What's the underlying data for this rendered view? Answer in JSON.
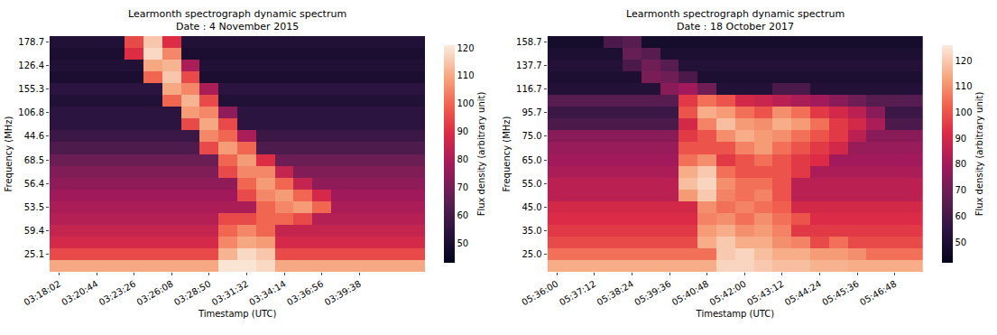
{
  "chart_data": [
    {
      "type": "heatmap",
      "title": "Learmonth spectrograph dynamic spectrum",
      "subtitle": "Date : 4 November 2015",
      "x_label": "Timestamp (UTC)",
      "y_label": "Frequency (MHz)",
      "colorbar_label": "Flux density (arbitrary unit)",
      "colorbar_range": [
        43,
        121
      ],
      "colorbar_ticks": [
        50,
        60,
        70,
        80,
        90,
        100,
        110,
        120
      ],
      "x": [
        "03:18:02",
        null,
        "03:20:44",
        null,
        "03:23:26",
        null,
        "03:26:08",
        null,
        "03:28:50",
        null,
        "03:31:32",
        null,
        "03:34:14",
        null,
        "03:36:56",
        null,
        "03:39:38",
        null,
        null,
        null
      ],
      "y": [
        "178.7",
        null,
        "126.4",
        null,
        "155.3",
        null,
        "106.8",
        null,
        "44.6",
        null,
        "68.5",
        null,
        "56.4",
        null,
        "53.5",
        null,
        "59.4",
        null,
        "25.1",
        null
      ],
      "z": [
        [
          52,
          52,
          52,
          52,
          95,
          115,
          90,
          52,
          52,
          52,
          52,
          52,
          52,
          52,
          52,
          52,
          52,
          52,
          52,
          52
        ],
        [
          50,
          50,
          50,
          50,
          90,
          118,
          105,
          50,
          50,
          50,
          50,
          50,
          50,
          50,
          50,
          50,
          50,
          50,
          50,
          50
        ],
        [
          52,
          52,
          52,
          52,
          52,
          110,
          112,
          80,
          52,
          52,
          52,
          52,
          52,
          52,
          52,
          52,
          52,
          52,
          52,
          52
        ],
        [
          50,
          50,
          50,
          50,
          50,
          100,
          115,
          95,
          50,
          50,
          50,
          50,
          50,
          50,
          50,
          50,
          50,
          50,
          50,
          50
        ],
        [
          55,
          55,
          55,
          55,
          55,
          55,
          110,
          105,
          80,
          55,
          55,
          55,
          55,
          55,
          55,
          55,
          55,
          55,
          55,
          55
        ],
        [
          52,
          52,
          52,
          52,
          52,
          52,
          100,
          112,
          95,
          52,
          52,
          52,
          52,
          52,
          52,
          52,
          52,
          52,
          52,
          52
        ],
        [
          55,
          55,
          55,
          55,
          55,
          55,
          55,
          108,
          105,
          75,
          55,
          55,
          55,
          55,
          55,
          55,
          55,
          55,
          55,
          55
        ],
        [
          55,
          55,
          55,
          55,
          55,
          55,
          55,
          95,
          110,
          95,
          55,
          55,
          55,
          55,
          55,
          55,
          55,
          55,
          55,
          55
        ],
        [
          58,
          58,
          58,
          58,
          58,
          58,
          58,
          58,
          105,
          100,
          80,
          58,
          58,
          58,
          58,
          58,
          58,
          58,
          58,
          58
        ],
        [
          62,
          62,
          62,
          62,
          62,
          62,
          62,
          62,
          95,
          108,
          100,
          62,
          62,
          62,
          62,
          62,
          62,
          62,
          62,
          62
        ],
        [
          68,
          68,
          68,
          68,
          68,
          68,
          68,
          68,
          68,
          100,
          108,
          90,
          68,
          68,
          68,
          68,
          68,
          68,
          68,
          68
        ],
        [
          72,
          72,
          72,
          72,
          72,
          72,
          72,
          72,
          72,
          95,
          105,
          105,
          85,
          72,
          72,
          72,
          72,
          72,
          72,
          72
        ],
        [
          75,
          75,
          75,
          75,
          75,
          75,
          75,
          75,
          75,
          75,
          100,
          108,
          100,
          85,
          75,
          75,
          75,
          75,
          75,
          75
        ],
        [
          78,
          78,
          78,
          78,
          78,
          78,
          78,
          78,
          78,
          78,
          95,
          105,
          108,
          100,
          88,
          78,
          78,
          78,
          78,
          78
        ],
        [
          80,
          80,
          80,
          80,
          80,
          80,
          80,
          80,
          80,
          80,
          80,
          100,
          105,
          108,
          100,
          80,
          80,
          80,
          80,
          80
        ],
        [
          82,
          82,
          82,
          82,
          82,
          82,
          82,
          82,
          82,
          95,
          95,
          100,
          100,
          95,
          82,
          82,
          82,
          82,
          82,
          82
        ],
        [
          85,
          85,
          85,
          85,
          85,
          85,
          85,
          85,
          85,
          100,
          105,
          100,
          85,
          85,
          85,
          85,
          85,
          85,
          85,
          85
        ],
        [
          88,
          88,
          88,
          88,
          88,
          88,
          88,
          88,
          88,
          105,
          110,
          108,
          88,
          88,
          88,
          88,
          88,
          88,
          88,
          88
        ],
        [
          95,
          95,
          95,
          95,
          95,
          95,
          95,
          95,
          95,
          112,
          118,
          115,
          95,
          95,
          95,
          95,
          95,
          95,
          95,
          95
        ],
        [
          110,
          110,
          110,
          110,
          110,
          110,
          110,
          110,
          110,
          120,
          120,
          118,
          110,
          110,
          110,
          110,
          110,
          110,
          110,
          110
        ]
      ]
    },
    {
      "type": "heatmap",
      "title": "Learmonth spectrograph dynamic spectrum",
      "subtitle": "Date : 18 October 2017",
      "x_label": "Timestamp (UTC)",
      "y_label": "Frequency (MHz)",
      "colorbar_label": "Flux density (arbitrary unit)",
      "colorbar_range": [
        42,
        126
      ],
      "colorbar_ticks": [
        50,
        60,
        70,
        80,
        90,
        100,
        110,
        120
      ],
      "x": [
        "05:36:00",
        null,
        "05:37:12",
        null,
        "05:38:24",
        null,
        "05:39:36",
        null,
        "05:40:48",
        null,
        "05:42:00",
        null,
        "05:43:12",
        null,
        "05:44:24",
        null,
        "05:45:36",
        null,
        "05:46:48",
        null
      ],
      "y": [
        "158.7",
        null,
        "137.7",
        null,
        "116.7",
        null,
        "95.7",
        null,
        "75.0",
        null,
        "65.0",
        null,
        "55.0",
        null,
        "45.0",
        null,
        "35.0",
        null,
        "25.0",
        null
      ],
      "z": [
        [
          48,
          48,
          48,
          62,
          65,
          48,
          48,
          48,
          48,
          48,
          48,
          48,
          48,
          48,
          48,
          48,
          48,
          48,
          48,
          48
        ],
        [
          50,
          50,
          50,
          50,
          68,
          65,
          50,
          50,
          50,
          50,
          50,
          50,
          50,
          50,
          50,
          50,
          50,
          50,
          50,
          50
        ],
        [
          52,
          52,
          52,
          52,
          62,
          70,
          65,
          52,
          52,
          52,
          52,
          52,
          52,
          52,
          52,
          52,
          52,
          52,
          52,
          52
        ],
        [
          50,
          50,
          50,
          50,
          50,
          72,
          70,
          62,
          50,
          50,
          50,
          50,
          50,
          50,
          50,
          50,
          50,
          50,
          50,
          50
        ],
        [
          52,
          52,
          52,
          52,
          52,
          52,
          75,
          80,
          70,
          52,
          52,
          52,
          62,
          62,
          52,
          52,
          52,
          52,
          52,
          52
        ],
        [
          65,
          65,
          65,
          65,
          65,
          65,
          65,
          95,
          105,
          100,
          90,
          88,
          85,
          82,
          80,
          75,
          70,
          65,
          65,
          65
        ],
        [
          58,
          58,
          58,
          58,
          58,
          58,
          58,
          100,
          115,
          112,
          105,
          100,
          110,
          105,
          95,
          90,
          85,
          75,
          58,
          58
        ],
        [
          62,
          62,
          62,
          62,
          62,
          62,
          62,
          90,
          108,
          118,
          112,
          110,
          115,
          112,
          105,
          95,
          90,
          82,
          62,
          62
        ],
        [
          75,
          75,
          75,
          75,
          75,
          75,
          75,
          95,
          100,
          110,
          115,
          112,
          110,
          105,
          100,
          95,
          85,
          75,
          75,
          75
        ],
        [
          78,
          78,
          78,
          78,
          78,
          78,
          78,
          100,
          100,
          100,
          108,
          112,
          105,
          100,
          95,
          90,
          78,
          78,
          78,
          78
        ],
        [
          80,
          80,
          80,
          80,
          80,
          80,
          80,
          105,
          110,
          95,
          100,
          105,
          100,
          95,
          92,
          80,
          80,
          80,
          80,
          80
        ],
        [
          82,
          82,
          82,
          82,
          82,
          82,
          82,
          115,
          120,
          105,
          100,
          100,
          100,
          95,
          82,
          82,
          82,
          82,
          82,
          82
        ],
        [
          85,
          85,
          85,
          85,
          85,
          85,
          85,
          118,
          122,
          110,
          105,
          105,
          100,
          85,
          85,
          85,
          85,
          85,
          85,
          85
        ],
        [
          85,
          85,
          85,
          85,
          85,
          85,
          85,
          112,
          120,
          108,
          105,
          108,
          100,
          85,
          85,
          85,
          85,
          85,
          85,
          85
        ],
        [
          90,
          90,
          90,
          90,
          90,
          90,
          90,
          90,
          110,
          105,
          108,
          105,
          102,
          90,
          90,
          90,
          90,
          90,
          90,
          90
        ],
        [
          92,
          92,
          92,
          92,
          92,
          92,
          92,
          92,
          108,
          110,
          105,
          110,
          105,
          100,
          92,
          92,
          92,
          92,
          92,
          92
        ],
        [
          95,
          95,
          95,
          95,
          95,
          95,
          95,
          95,
          112,
          115,
          110,
          112,
          108,
          95,
          95,
          95,
          95,
          95,
          95,
          95
        ],
        [
          98,
          98,
          98,
          98,
          98,
          98,
          98,
          98,
          115,
          120,
          115,
          115,
          110,
          108,
          98,
          105,
          98,
          98,
          98,
          98
        ],
        [
          105,
          105,
          105,
          105,
          105,
          105,
          105,
          105,
          105,
          120,
          122,
          118,
          115,
          115,
          112,
          112,
          110,
          105,
          105,
          105
        ],
        [
          115,
          115,
          115,
          115,
          115,
          115,
          115,
          115,
          115,
          122,
          122,
          120,
          118,
          118,
          116,
          116,
          115,
          115,
          115,
          115
        ]
      ]
    }
  ]
}
